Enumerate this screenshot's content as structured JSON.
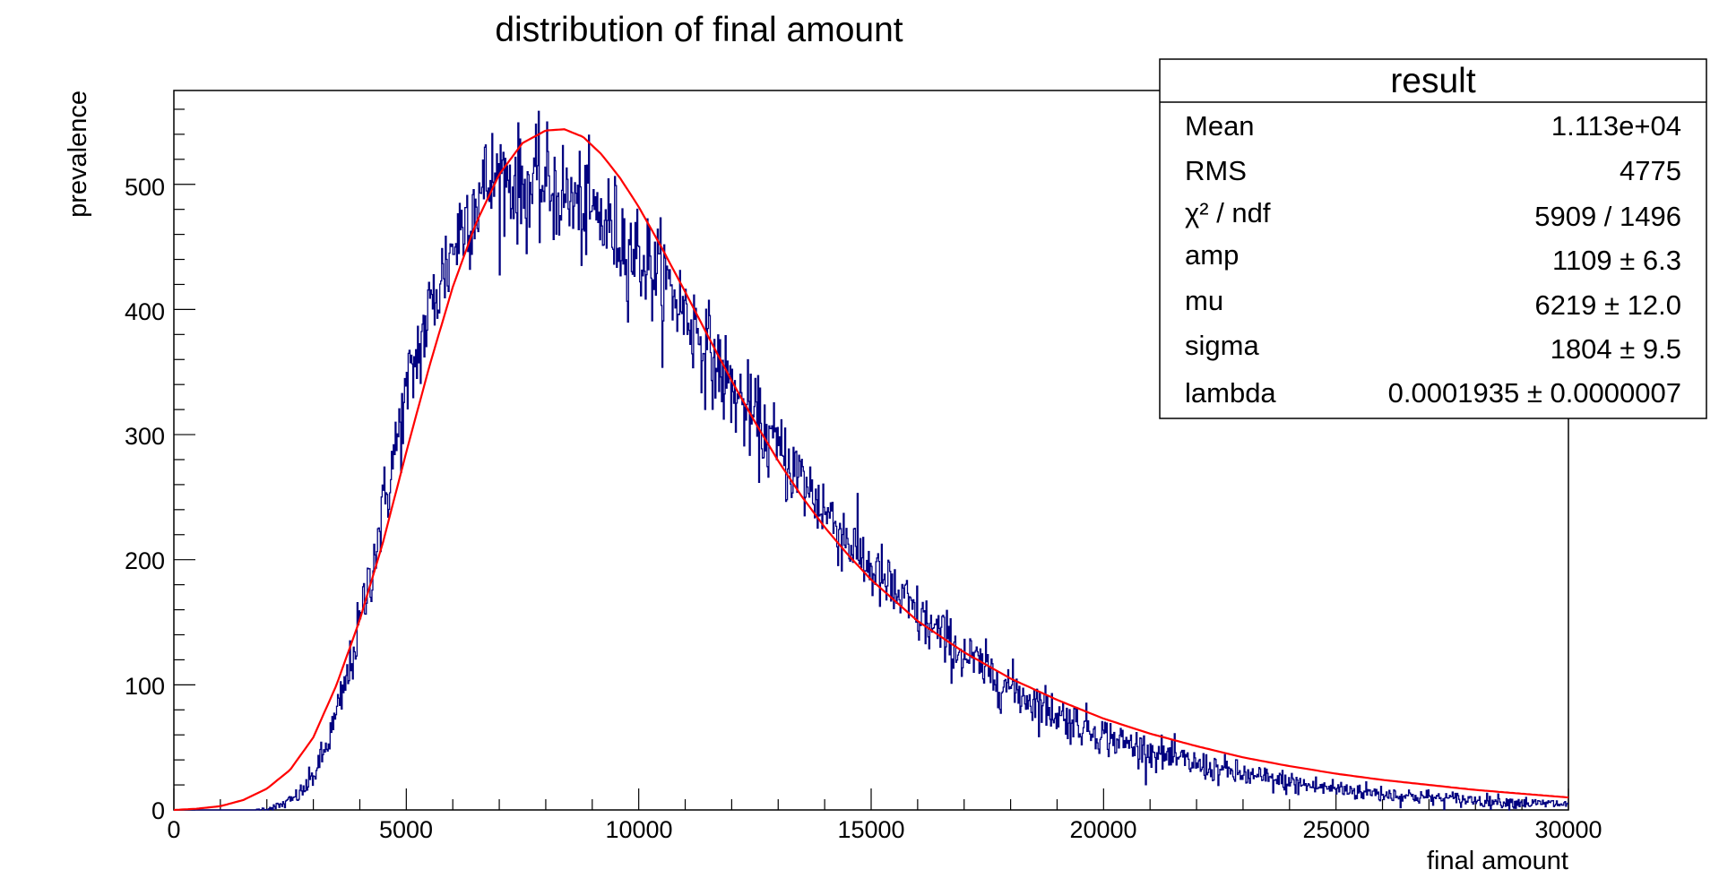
{
  "chart_data": {
    "type": "histogram",
    "title": "distribution of final amount",
    "xlabel": "final amount",
    "ylabel": "prevalence",
    "xlim": [
      0,
      30000
    ],
    "ylim": [
      0,
      575
    ],
    "x_ticks": [
      0,
      5000,
      10000,
      15000,
      20000,
      25000,
      30000
    ],
    "x_tick_labels": [
      "0",
      "5000",
      "10000",
      "15000",
      "20000",
      "25000",
      "30000"
    ],
    "y_ticks": [
      0,
      100,
      200,
      300,
      400,
      500
    ],
    "y_tick_labels": [
      "0",
      "100",
      "200",
      "300",
      "400",
      "500"
    ],
    "grid": false,
    "series": [
      {
        "name": "histogram",
        "kind": "step",
        "color": "#000080",
        "bin_width": 20,
        "sample_every": 250,
        "sampled_x": [
          0,
          250,
          500,
          750,
          1000,
          1250,
          1500,
          1750,
          2000,
          2250,
          2500,
          2750,
          3000,
          3250,
          3500,
          3750,
          4000,
          4250,
          4500,
          4750,
          5000,
          5250,
          5500,
          5750,
          6000,
          6250,
          6500,
          6750,
          7000,
          7250,
          7500,
          7750,
          8000,
          8250,
          8500,
          8750,
          9000,
          9250,
          9500,
          9750,
          10000,
          10250,
          10500,
          10750,
          11000,
          11250,
          11500,
          11750,
          12000,
          12250,
          12500,
          12750,
          13000,
          13250,
          13500,
          13750,
          14000,
          14250,
          14500,
          14750,
          15000,
          15250,
          15500,
          15750,
          16000,
          16250,
          16500,
          16750,
          17000,
          17250,
          17500,
          17750,
          18000,
          18250,
          18500,
          18750,
          19000,
          19250,
          19500,
          19750,
          20000,
          20250,
          20500,
          20750,
          21000,
          21250,
          21500,
          21750,
          22000,
          22250,
          22500,
          22750,
          23000,
          23250,
          23500,
          23750,
          24000,
          24250,
          24500,
          24750,
          25000,
          25250,
          25500,
          25750,
          26000,
          26250,
          26500,
          26750,
          27000,
          27250,
          27500,
          27750,
          28000,
          28250,
          28500,
          28750,
          29000,
          29250,
          29500,
          29750,
          30000
        ],
        "sampled_y": [
          0,
          0,
          0,
          0,
          0,
          0,
          0,
          0,
          1,
          3,
          7,
          14,
          27,
          47,
          75,
          108,
          148,
          193,
          239,
          285,
          330,
          366,
          397,
          424,
          449,
          472,
          488,
          500,
          506,
          504,
          496,
          496,
          500,
          494,
          488,
          480,
          478,
          470,
          462,
          452,
          444,
          434,
          424,
          412,
          398,
          383,
          366,
          350,
          336,
          323,
          311,
          299,
          288,
          276,
          264,
          252,
          240,
          228,
          216,
          204,
          193,
          183,
          173,
          164,
          155,
          147,
          139,
          131,
          124,
          117,
          110,
          104,
          98,
          92,
          87,
          82,
          77,
          72,
          68,
          64,
          60,
          56,
          53,
          50,
          47,
          44,
          41,
          39,
          36,
          34,
          32,
          30,
          28,
          26,
          25,
          23,
          22,
          20,
          19,
          18,
          17,
          16,
          15,
          14,
          13,
          12,
          11,
          11,
          10,
          9,
          9,
          8,
          8,
          7,
          7,
          6,
          6,
          5,
          5,
          5,
          4
        ]
      },
      {
        "name": "fit",
        "kind": "line",
        "color": "#ff0000",
        "x": [
          0,
          500,
          1000,
          1500,
          2000,
          2500,
          3000,
          3500,
          4000,
          4500,
          5000,
          5500,
          6000,
          6500,
          7000,
          7500,
          8000,
          8400,
          8800,
          9200,
          9600,
          10000,
          10500,
          11000,
          11500,
          12000,
          12500,
          13000,
          13500,
          14000,
          14500,
          15000,
          16000,
          17000,
          18000,
          19000,
          20000,
          21000,
          22000,
          23000,
          24000,
          25000,
          26000,
          27000,
          28000,
          29000,
          30000
        ],
        "y": [
          0,
          1,
          3,
          8,
          17,
          32,
          58,
          100,
          152,
          214,
          286,
          355,
          418,
          469,
          508,
          533,
          543,
          544,
          538,
          524,
          505,
          482,
          449,
          414,
          378,
          343,
          310,
          279,
          251,
          226,
          204,
          184,
          151,
          126,
          105,
          88,
          73,
          61,
          51,
          42,
          35,
          29,
          24,
          20,
          16,
          13,
          10
        ]
      }
    ],
    "stats_box": {
      "title": "result",
      "rows": [
        {
          "name": "Mean",
          "value": "1.113e+04"
        },
        {
          "name": "RMS",
          "value": "4775"
        },
        {
          "name": "χ² / ndf",
          "value": "5909 / 1496"
        },
        {
          "name": "amp",
          "value": "1109 ± 6.3"
        },
        {
          "name": "mu",
          "value": "6219 ± 12.0"
        },
        {
          "name": "sigma",
          "value": "1804 ± 9.5"
        },
        {
          "name": "lambda",
          "value": "0.0001935 ± 0.0000007"
        }
      ]
    }
  }
}
